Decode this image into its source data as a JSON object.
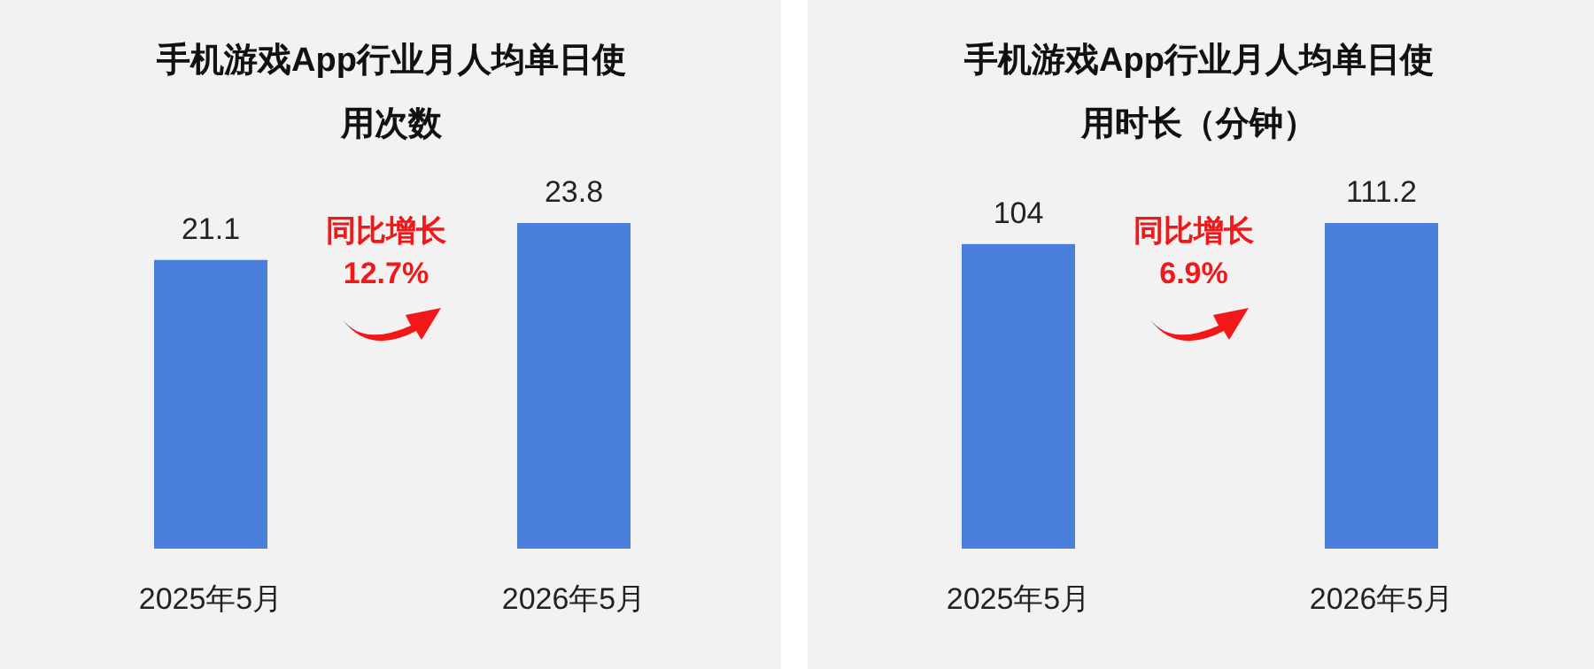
{
  "chart_data": [
    {
      "type": "bar",
      "title": "手机游戏App行业月人均单日使用次数",
      "categories": [
        "2025年5月",
        "2026年5月"
      ],
      "values": [
        21.1,
        23.8
      ],
      "color": "#4a7fdc",
      "data_labels": true,
      "annotations": [
        "同比增长",
        "12.7%"
      ]
    },
    {
      "type": "bar",
      "title": "手机游戏App行业月人均单日使用时长（分钟）",
      "categories": [
        "2025年5月",
        "2026年5月"
      ],
      "values": [
        104,
        111.2
      ],
      "color": "#4a7fdc",
      "data_labels": true,
      "annotations": [
        "同比增长",
        "6.9%"
      ]
    }
  ]
}
